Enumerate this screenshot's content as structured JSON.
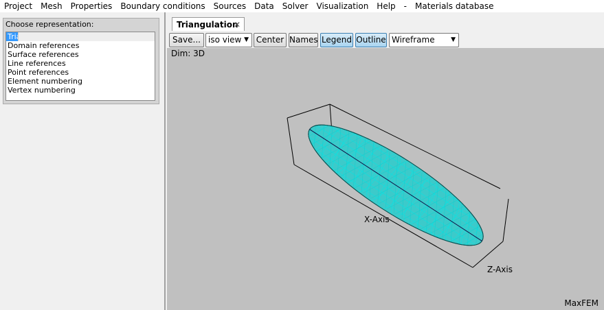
{
  "menu": [
    "Project",
    "Mesh",
    "Properties",
    "Boundary conditions",
    "Sources",
    "Data",
    "Solver",
    "Visualization",
    "Help",
    "-",
    "Materials database"
  ],
  "left_panel": {
    "label": "Choose representation:",
    "items": [
      "Triangulation",
      "Domain references",
      "Surface references",
      "Line references",
      "Point references",
      "Element numbering",
      "Vertex numbering"
    ]
  },
  "tab": {
    "title": "Triangulation"
  },
  "toolbar": {
    "save": "Save...",
    "view": "iso view",
    "center": "Center",
    "names": "Names",
    "legend": "Legend",
    "outline": "Outline",
    "mode": "Wireframe"
  },
  "viewport": {
    "dim": "Dim: 3D",
    "x_axis": "X-Axis",
    "z_axis": "Z-Axis",
    "watermark": "MaxFEM"
  }
}
